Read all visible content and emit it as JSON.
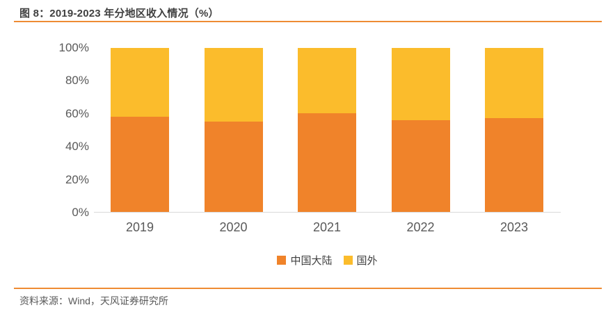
{
  "header": {
    "title": "图 8：2019-2023 年分地区收入情况（%）"
  },
  "chart_data": {
    "type": "bar",
    "stacked": true,
    "title": "2019-2023 年分地区收入情况（%）",
    "categories": [
      "2019",
      "2020",
      "2021",
      "2022",
      "2023"
    ],
    "series": [
      {
        "name": "中国大陆",
        "color": "#F0832A",
        "values": [
          58,
          55,
          60,
          56,
          57
        ]
      },
      {
        "name": "国外",
        "color": "#FBBC2C",
        "values": [
          42,
          45,
          40,
          44,
          43
        ]
      }
    ],
    "xlabel": "",
    "ylabel": "",
    "ylim": [
      0,
      100
    ],
    "y_ticks": [
      "0%",
      "20%",
      "40%",
      "60%",
      "80%",
      "100%"
    ],
    "grid": false,
    "legend_position": "bottom"
  },
  "footer": {
    "source": "资料来源：Wind，天风证券研究所"
  },
  "colors": {
    "accent_rule": "#EE8B33",
    "axis_line": "#D9D9D9",
    "title_text": "#404040",
    "axis_text": "#595959"
  }
}
